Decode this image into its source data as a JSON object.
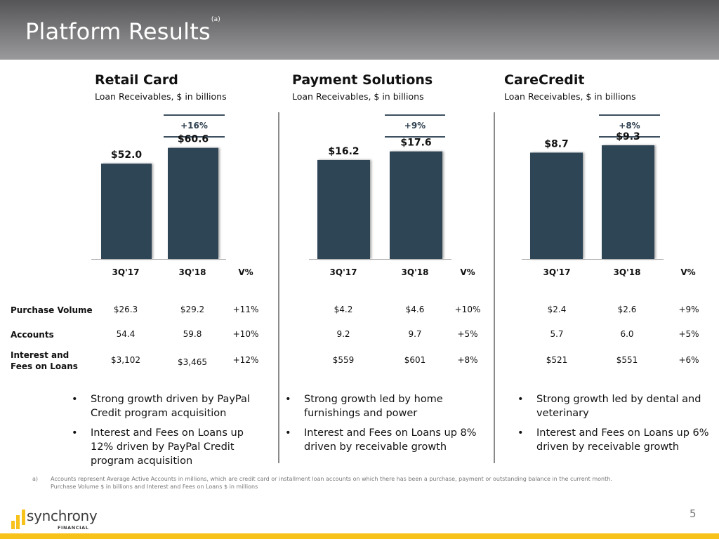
{
  "header": {
    "title": "Platform Results",
    "title_note": "(a)"
  },
  "colors": {
    "bar": "#2e4454",
    "accent": "#f7c31b",
    "header_top": "#555557",
    "header_bottom": "#9a9a9c"
  },
  "chart_data": [
    {
      "type": "bar",
      "title": "Retail Card",
      "subtitle": "Loan Receivables, $ in billions",
      "categories": [
        "3Q'17",
        "3Q'18"
      ],
      "values": [
        52.0,
        60.6
      ],
      "value_labels": [
        "$52.0",
        "$60.6"
      ],
      "change_label": "+16%",
      "ylim": [
        0,
        80
      ],
      "xlabel": "",
      "ylabel": ""
    },
    {
      "type": "bar",
      "title": "Payment Solutions",
      "subtitle": "Loan Receivables, $ in billions",
      "categories": [
        "3Q'17",
        "3Q'18"
      ],
      "values": [
        16.2,
        17.6
      ],
      "value_labels": [
        "$16.2",
        "$17.6"
      ],
      "change_label": "+9%",
      "ylim": [
        0,
        24
      ],
      "xlabel": "",
      "ylabel": ""
    },
    {
      "type": "bar",
      "title": "CareCredit",
      "subtitle": "Loan Receivables, $ in billions",
      "categories": [
        "3Q'17",
        "3Q'18"
      ],
      "values": [
        8.7,
        9.3
      ],
      "value_labels": [
        "$8.7",
        "$9.3"
      ],
      "change_label": "+8%",
      "ylim": [
        0,
        12
      ],
      "xlabel": "",
      "ylabel": ""
    }
  ],
  "table": {
    "columns": [
      "3Q'17",
      "3Q'18",
      "V%"
    ],
    "row_labels": [
      "Purchase Volume",
      "Accounts",
      "Interest and Fees on Loans"
    ],
    "row_label_lines": [
      [
        "Purchase Volume"
      ],
      [
        "Accounts"
      ],
      [
        "Interest and",
        "Fees on Loans"
      ]
    ],
    "panels": [
      {
        "rows": [
          [
            "$26.3",
            "$29.2",
            "+11%"
          ],
          [
            "54.4",
            "59.8",
            "+10%"
          ],
          [
            "$3,102",
            "$3,465",
            "+12%"
          ]
        ]
      },
      {
        "rows": [
          [
            "$4.2",
            "$4.6",
            "+10%"
          ],
          [
            "9.2",
            "9.7",
            "+5%"
          ],
          [
            "$559",
            "$601",
            "+8%"
          ]
        ]
      },
      {
        "rows": [
          [
            "$2.4",
            "$2.6",
            "+9%"
          ],
          [
            "5.7",
            "6.0",
            "+5%"
          ],
          [
            "$521",
            "$551",
            "+6%"
          ]
        ]
      }
    ]
  },
  "bullets": [
    [
      "Strong growth driven by PayPal Credit program acquisition",
      "Interest and Fees on Loans up 12% driven by PayPal Credit program acquisition"
    ],
    [
      "Strong growth led by home furnishings and power",
      "Interest and Fees on Loans up 8% driven by receivable growth"
    ],
    [
      "Strong growth led by dental and veterinary",
      "Interest and Fees on Loans up 6% driven by receivable growth"
    ]
  ],
  "bullet_char": "•",
  "footnote": {
    "mark": "a)",
    "line1": "Accounts represent Average Active Accounts in millions, which are credit card or installment loan accounts on which there has been a purchase, payment or outstanding balance in the current month.",
    "line2": "Purchase Volume $ in billions and Interest and Fees on Loans $ in millions"
  },
  "logo": {
    "name": "synchrony",
    "sub": "FINANCIAL"
  },
  "page_number": "5"
}
